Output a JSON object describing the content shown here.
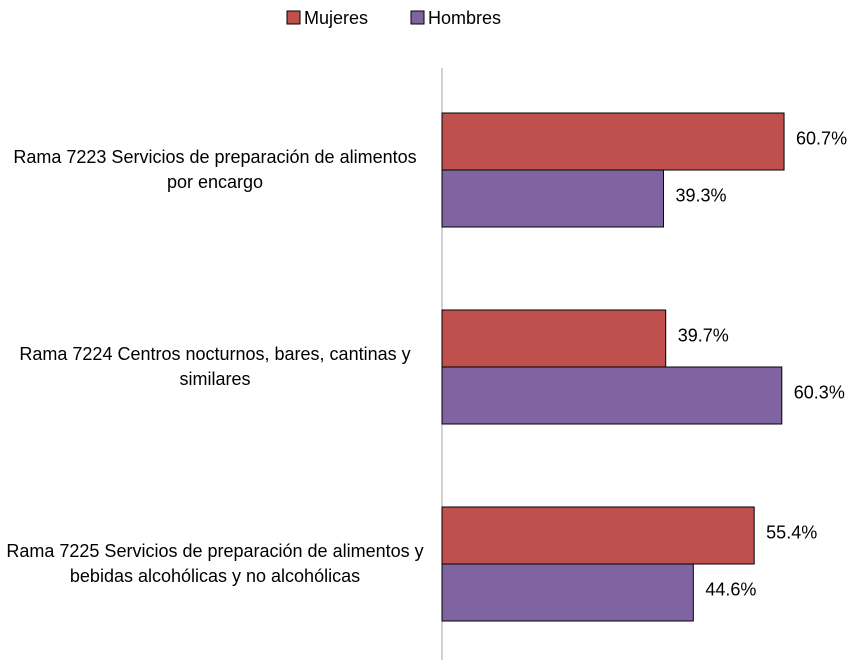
{
  "chart_data": {
    "type": "bar",
    "orientation": "horizontal",
    "categories": [
      "Rama 7223 Servicios de preparación de alimentos por encargo",
      "Rama 7224 Centros nocturnos, bares, cantinas y similares",
      "Rama 7225 Servicios de preparación de alimentos y bebidas alcohólicas y no alcohólicas"
    ],
    "series": [
      {
        "name": "Mujeres",
        "color": "#c0504d",
        "values": [
          60.7,
          39.7,
          55.4
        ],
        "value_labels": [
          "60.7%",
          "39.7%",
          "55.4%"
        ]
      },
      {
        "name": "Hombres",
        "color": "#8064a2",
        "values": [
          39.3,
          60.3,
          44.6
        ],
        "value_labels": [
          "39.3%",
          "60.3%",
          "44.6%"
        ]
      }
    ],
    "legend": "top"
  }
}
